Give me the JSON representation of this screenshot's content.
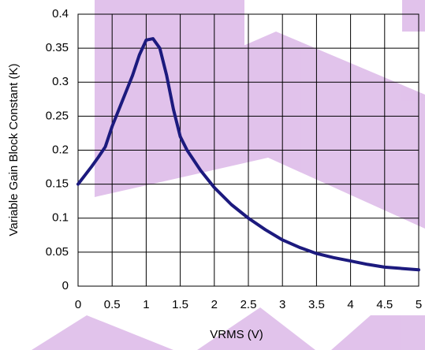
{
  "chart_data": {
    "type": "line",
    "x_label": "VRMS (V)",
    "y_label": "Variable Gain Block Constant (K)",
    "x": [
      0,
      0.1,
      0.2,
      0.3,
      0.4,
      0.5,
      0.6,
      0.7,
      0.8,
      0.9,
      1.0,
      1.1,
      1.2,
      1.3,
      1.4,
      1.5,
      1.6,
      1.8,
      2.0,
      2.25,
      2.5,
      2.75,
      3.0,
      3.25,
      3.5,
      3.75,
      4.0,
      4.25,
      4.5,
      4.75,
      5.0
    ],
    "series": [
      {
        "name": "K",
        "color": "#1c1a7e",
        "values": [
          0.15,
          0.163,
          0.176,
          0.19,
          0.205,
          0.235,
          0.26,
          0.285,
          0.31,
          0.34,
          0.362,
          0.364,
          0.35,
          0.31,
          0.26,
          0.22,
          0.2,
          0.17,
          0.145,
          0.12,
          0.1,
          0.083,
          0.068,
          0.057,
          0.048,
          0.042,
          0.037,
          0.032,
          0.028,
          0.026,
          0.024
        ]
      }
    ],
    "xlim": [
      0,
      5
    ],
    "xticks": [
      0,
      0.5,
      1,
      1.5,
      2,
      2.5,
      3,
      3.5,
      4,
      4.5,
      5
    ],
    "ylim": [
      0,
      0.4
    ],
    "yticks": [
      0,
      0.05,
      0.1,
      0.15,
      0.2,
      0.25,
      0.3,
      0.35,
      0.4
    ],
    "grid": true
  }
}
